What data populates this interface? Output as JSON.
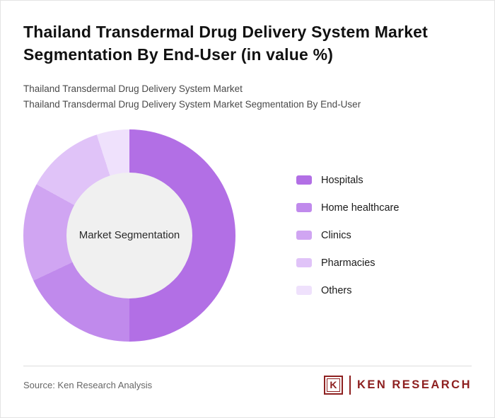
{
  "header": {
    "title": "Thailand Transdermal Drug Delivery System Market Segmentation By End-User (in value %)",
    "subtitle1": "Thailand Transdermal Drug Delivery System Market",
    "subtitle2": "Thailand Transdermal Drug Delivery System Market Segmentation By End-User"
  },
  "chart_data": {
    "type": "pie",
    "subtype": "donut",
    "title": "Thailand Transdermal Drug Delivery System Market Segmentation By End-User (in value %)",
    "categories": [
      "Hospitals",
      "Home healthcare",
      "Clinics",
      "Pharmacies",
      "Others"
    ],
    "values": [
      50,
      18,
      15,
      12,
      5
    ],
    "colors": [
      "#b26fe5",
      "#c08aec",
      "#d0a5f2",
      "#e0c3f8",
      "#efe1fc"
    ],
    "center_label": "Market Segmentation",
    "center_bg": "#f0f0f0",
    "legend_position": "right",
    "start_angle_deg": 0,
    "direction": "clockwise"
  },
  "footer": {
    "source": "Source: Ken Research Analysis",
    "logo": {
      "letter": "K",
      "text": "KEN RESEARCH",
      "color": "#8e2020"
    }
  }
}
